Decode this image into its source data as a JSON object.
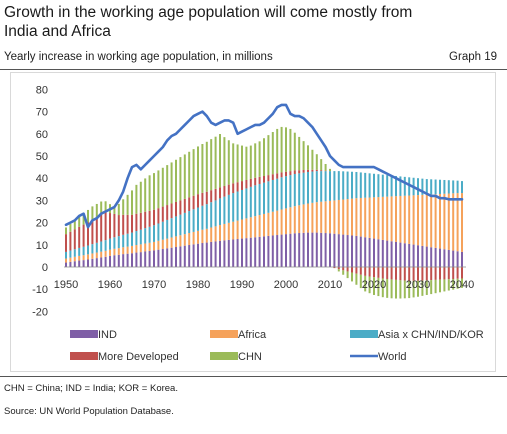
{
  "header": {
    "title": "Growth in the working age population will come mostly from India and Africa",
    "subtitle": "Yearly increase in working age population, in millions",
    "graph_label": "Graph 19"
  },
  "footnotes": {
    "abbreviations": "CHN = China; IND = India; KOR = Korea.",
    "source": "Source: UN World Population Database."
  },
  "colors": {
    "IND": "#7f5fa6",
    "Africa": "#f5a25b",
    "Asia": "#4bacc6",
    "MoreDeveloped": "#c0504d",
    "CHN": "#9bbb59",
    "World": "#4472c4"
  },
  "chart_data": {
    "type": "bar",
    "stacked": true,
    "x_start": 1950,
    "x_end": 2040,
    "ylim": [
      -20,
      80
    ],
    "yticks": [
      -20,
      -10,
      0,
      10,
      20,
      30,
      40,
      50,
      60,
      70,
      80
    ],
    "xticks": [
      1950,
      1960,
      1970,
      1980,
      1990,
      2000,
      2010,
      2020,
      2030,
      2040
    ],
    "grid": false,
    "legend_position": "bottom",
    "series": [
      {
        "name": "IND",
        "color_key": "IND",
        "values": [
          2,
          2.3,
          2.6,
          2.9,
          3.1,
          3.4,
          3.7,
          4,
          4.3,
          4.6,
          5,
          5.3,
          5.5,
          5.8,
          6,
          6.2,
          6.5,
          6.7,
          7,
          7.2,
          7.5,
          7.8,
          8.1,
          8.4,
          8.7,
          9,
          9.3,
          9.6,
          9.9,
          10.2,
          10.5,
          10.8,
          11,
          11.3,
          11.5,
          11.8,
          12,
          12.2,
          12.4,
          12.6,
          12.8,
          13,
          13.2,
          13.4,
          13.6,
          13.8,
          14,
          14.2,
          14.4,
          14.6,
          14.8,
          15,
          15.2,
          15.3,
          15.4,
          15.5,
          15.5,
          15.5,
          15.4,
          15.3,
          15.2,
          15,
          14.8,
          14.6,
          14.4,
          14.2,
          14,
          13.7,
          13.4,
          13.1,
          12.8,
          12.5,
          12.2,
          11.9,
          11.6,
          11.3,
          11,
          10.7,
          10.4,
          10.1,
          9.8,
          9.5,
          9.2,
          8.9,
          8.6,
          8.3,
          8,
          7.7,
          7.4,
          7.1,
          6.8
        ]
      },
      {
        "name": "Africa",
        "color_key": "Africa",
        "values": [
          1.8,
          1.9,
          2,
          2.1,
          2.2,
          2.3,
          2.4,
          2.5,
          2.6,
          2.7,
          2.8,
          2.9,
          3,
          3.1,
          3.2,
          3.3,
          3.4,
          3.5,
          3.6,
          3.7,
          3.8,
          4,
          4.2,
          4.4,
          4.6,
          4.8,
          5,
          5.2,
          5.4,
          5.6,
          5.8,
          6,
          6.2,
          6.5,
          6.8,
          7.1,
          7.4,
          7.7,
          8,
          8.3,
          8.6,
          8.9,
          9.2,
          9.5,
          9.8,
          10.1,
          10.4,
          10.7,
          11,
          11.3,
          11.6,
          11.9,
          12.2,
          12.5,
          12.8,
          13.1,
          13.4,
          13.7,
          14,
          14.3,
          14.6,
          15,
          15.4,
          15.8,
          16.2,
          16.6,
          17,
          17.4,
          17.8,
          18.2,
          18.6,
          19,
          19.4,
          19.8,
          20.2,
          20.6,
          21,
          21.4,
          21.8,
          22.2,
          22.6,
          23,
          23.4,
          23.8,
          24.2,
          24.6,
          25,
          25.4,
          25.8,
          26.2,
          26.5
        ]
      },
      {
        "name": "Asia x CHN/IND/KOR",
        "color_key": "Asia",
        "values": [
          3,
          3.2,
          3.4,
          3.6,
          3.8,
          4,
          4.2,
          4.4,
          4.6,
          4.8,
          5,
          5.2,
          5.4,
          5.6,
          5.8,
          6,
          6.3,
          6.6,
          6.9,
          7.2,
          7.5,
          7.8,
          8.1,
          8.4,
          8.7,
          9,
          9.3,
          9.6,
          9.9,
          10.2,
          10.5,
          10.8,
          11.1,
          11.4,
          11.7,
          12,
          12.3,
          12.6,
          12.9,
          13.1,
          13.3,
          13.5,
          13.7,
          13.9,
          14,
          14.1,
          14.2,
          14.3,
          14.4,
          14.5,
          14.5,
          14.5,
          14.5,
          14.4,
          14.3,
          14.2,
          14.1,
          14,
          13.8,
          13.6,
          13.4,
          13.2,
          13,
          12.7,
          12.4,
          12.1,
          11.8,
          11.5,
          11.2,
          10.9,
          10.6,
          10.3,
          10,
          9.7,
          9.4,
          9.1,
          8.8,
          8.5,
          8.2,
          7.9,
          7.6,
          7.3,
          7,
          6.8,
          6.6,
          6.4,
          6.2,
          6,
          5.8,
          5.6,
          5.4
        ]
      },
      {
        "name": "More Developed",
        "color_key": "MoreDeveloped",
        "values": [
          8,
          8.5,
          9,
          9.5,
          10,
          10.5,
          11,
          11.5,
          12,
          12.5,
          11.5,
          10.5,
          9.5,
          9,
          8.5,
          8,
          7.8,
          7.6,
          7.4,
          7.2,
          7,
          6.9,
          6.8,
          6.7,
          6.6,
          6.5,
          6.4,
          6.3,
          6.2,
          6.1,
          6,
          5.8,
          5.6,
          5.4,
          5.2,
          5,
          4.8,
          4.6,
          4.4,
          4.2,
          4,
          3.8,
          3.6,
          3.4,
          3.2,
          3,
          2.8,
          2.6,
          2.4,
          2.2,
          2,
          1.8,
          1.6,
          1.4,
          1.2,
          1,
          0.8,
          0.6,
          0.4,
          0.2,
          0,
          -0.5,
          -1,
          -1.5,
          -2,
          -2.5,
          -3,
          -3.5,
          -4,
          -4.3,
          -4.6,
          -4.9,
          -5.2,
          -5.4,
          -5.6,
          -5.8,
          -6,
          -6.1,
          -6.2,
          -6.2,
          -6.2,
          -6.1,
          -6,
          -5.9,
          -5.8,
          -5.7,
          -5.6,
          -5.5,
          -5.4,
          -5.3,
          -5.2
        ]
      },
      {
        "name": "CHN",
        "color_key": "CHN",
        "values": [
          3,
          3.5,
          4,
          4.5,
          5,
          5.5,
          6,
          6,
          6,
          5,
          4,
          3,
          5,
          7,
          9,
          11,
          13,
          14,
          15,
          16,
          16.5,
          17,
          17.5,
          18,
          18.5,
          19,
          19.5,
          20,
          20.5,
          21,
          21.5,
          22,
          22.5,
          23,
          23.5,
          24,
          22,
          20,
          18,
          17,
          16,
          15,
          15,
          15.5,
          16,
          17,
          18,
          19,
          20,
          20.5,
          20,
          19,
          17,
          15,
          13,
          11,
          9,
          7,
          5,
          3,
          1,
          0,
          -1,
          -2,
          -3,
          -4,
          -5,
          -6,
          -7,
          -7.5,
          -8,
          -8.2,
          -8.4,
          -8.5,
          -8.5,
          -8.4,
          -8.2,
          -8,
          -7.8,
          -7.5,
          -7.2,
          -6.9,
          -6.6,
          -6.3,
          -6,
          -5.7,
          -5.4,
          -5.1,
          -4.8,
          -4.5,
          -4.2
        ]
      }
    ],
    "line": {
      "name": "World",
      "color_key": "World",
      "values": [
        19,
        20,
        21,
        23,
        24,
        18,
        21,
        22,
        24,
        25,
        26,
        27,
        30,
        34,
        40,
        45,
        46,
        44,
        46,
        48,
        50,
        52,
        54,
        57,
        59,
        60,
        62,
        64,
        66,
        68,
        69,
        70,
        68,
        65,
        64,
        65,
        66,
        66,
        65,
        60,
        61,
        62,
        63,
        64,
        64,
        65,
        67,
        69,
        72,
        73,
        73,
        69,
        68,
        68,
        67,
        65,
        63,
        60,
        57,
        54,
        50,
        48,
        46,
        45,
        45,
        45,
        45,
        45,
        45,
        45,
        45,
        44,
        43,
        42,
        41,
        40,
        39,
        38,
        37,
        36,
        35,
        34,
        33,
        32,
        32,
        31,
        31,
        30.5,
        30.5,
        30.5,
        30.5
      ]
    },
    "legend": [
      {
        "label": "IND",
        "kind": "bar",
        "color_key": "IND"
      },
      {
        "label": "Africa",
        "kind": "bar",
        "color_key": "Africa"
      },
      {
        "label": "Asia x CHN/IND/KOR",
        "kind": "bar",
        "color_key": "Asia"
      },
      {
        "label": "More Developed",
        "kind": "bar",
        "color_key": "MoreDeveloped"
      },
      {
        "label": "CHN",
        "kind": "bar",
        "color_key": "CHN"
      },
      {
        "label": "World",
        "kind": "line",
        "color_key": "World"
      }
    ]
  }
}
